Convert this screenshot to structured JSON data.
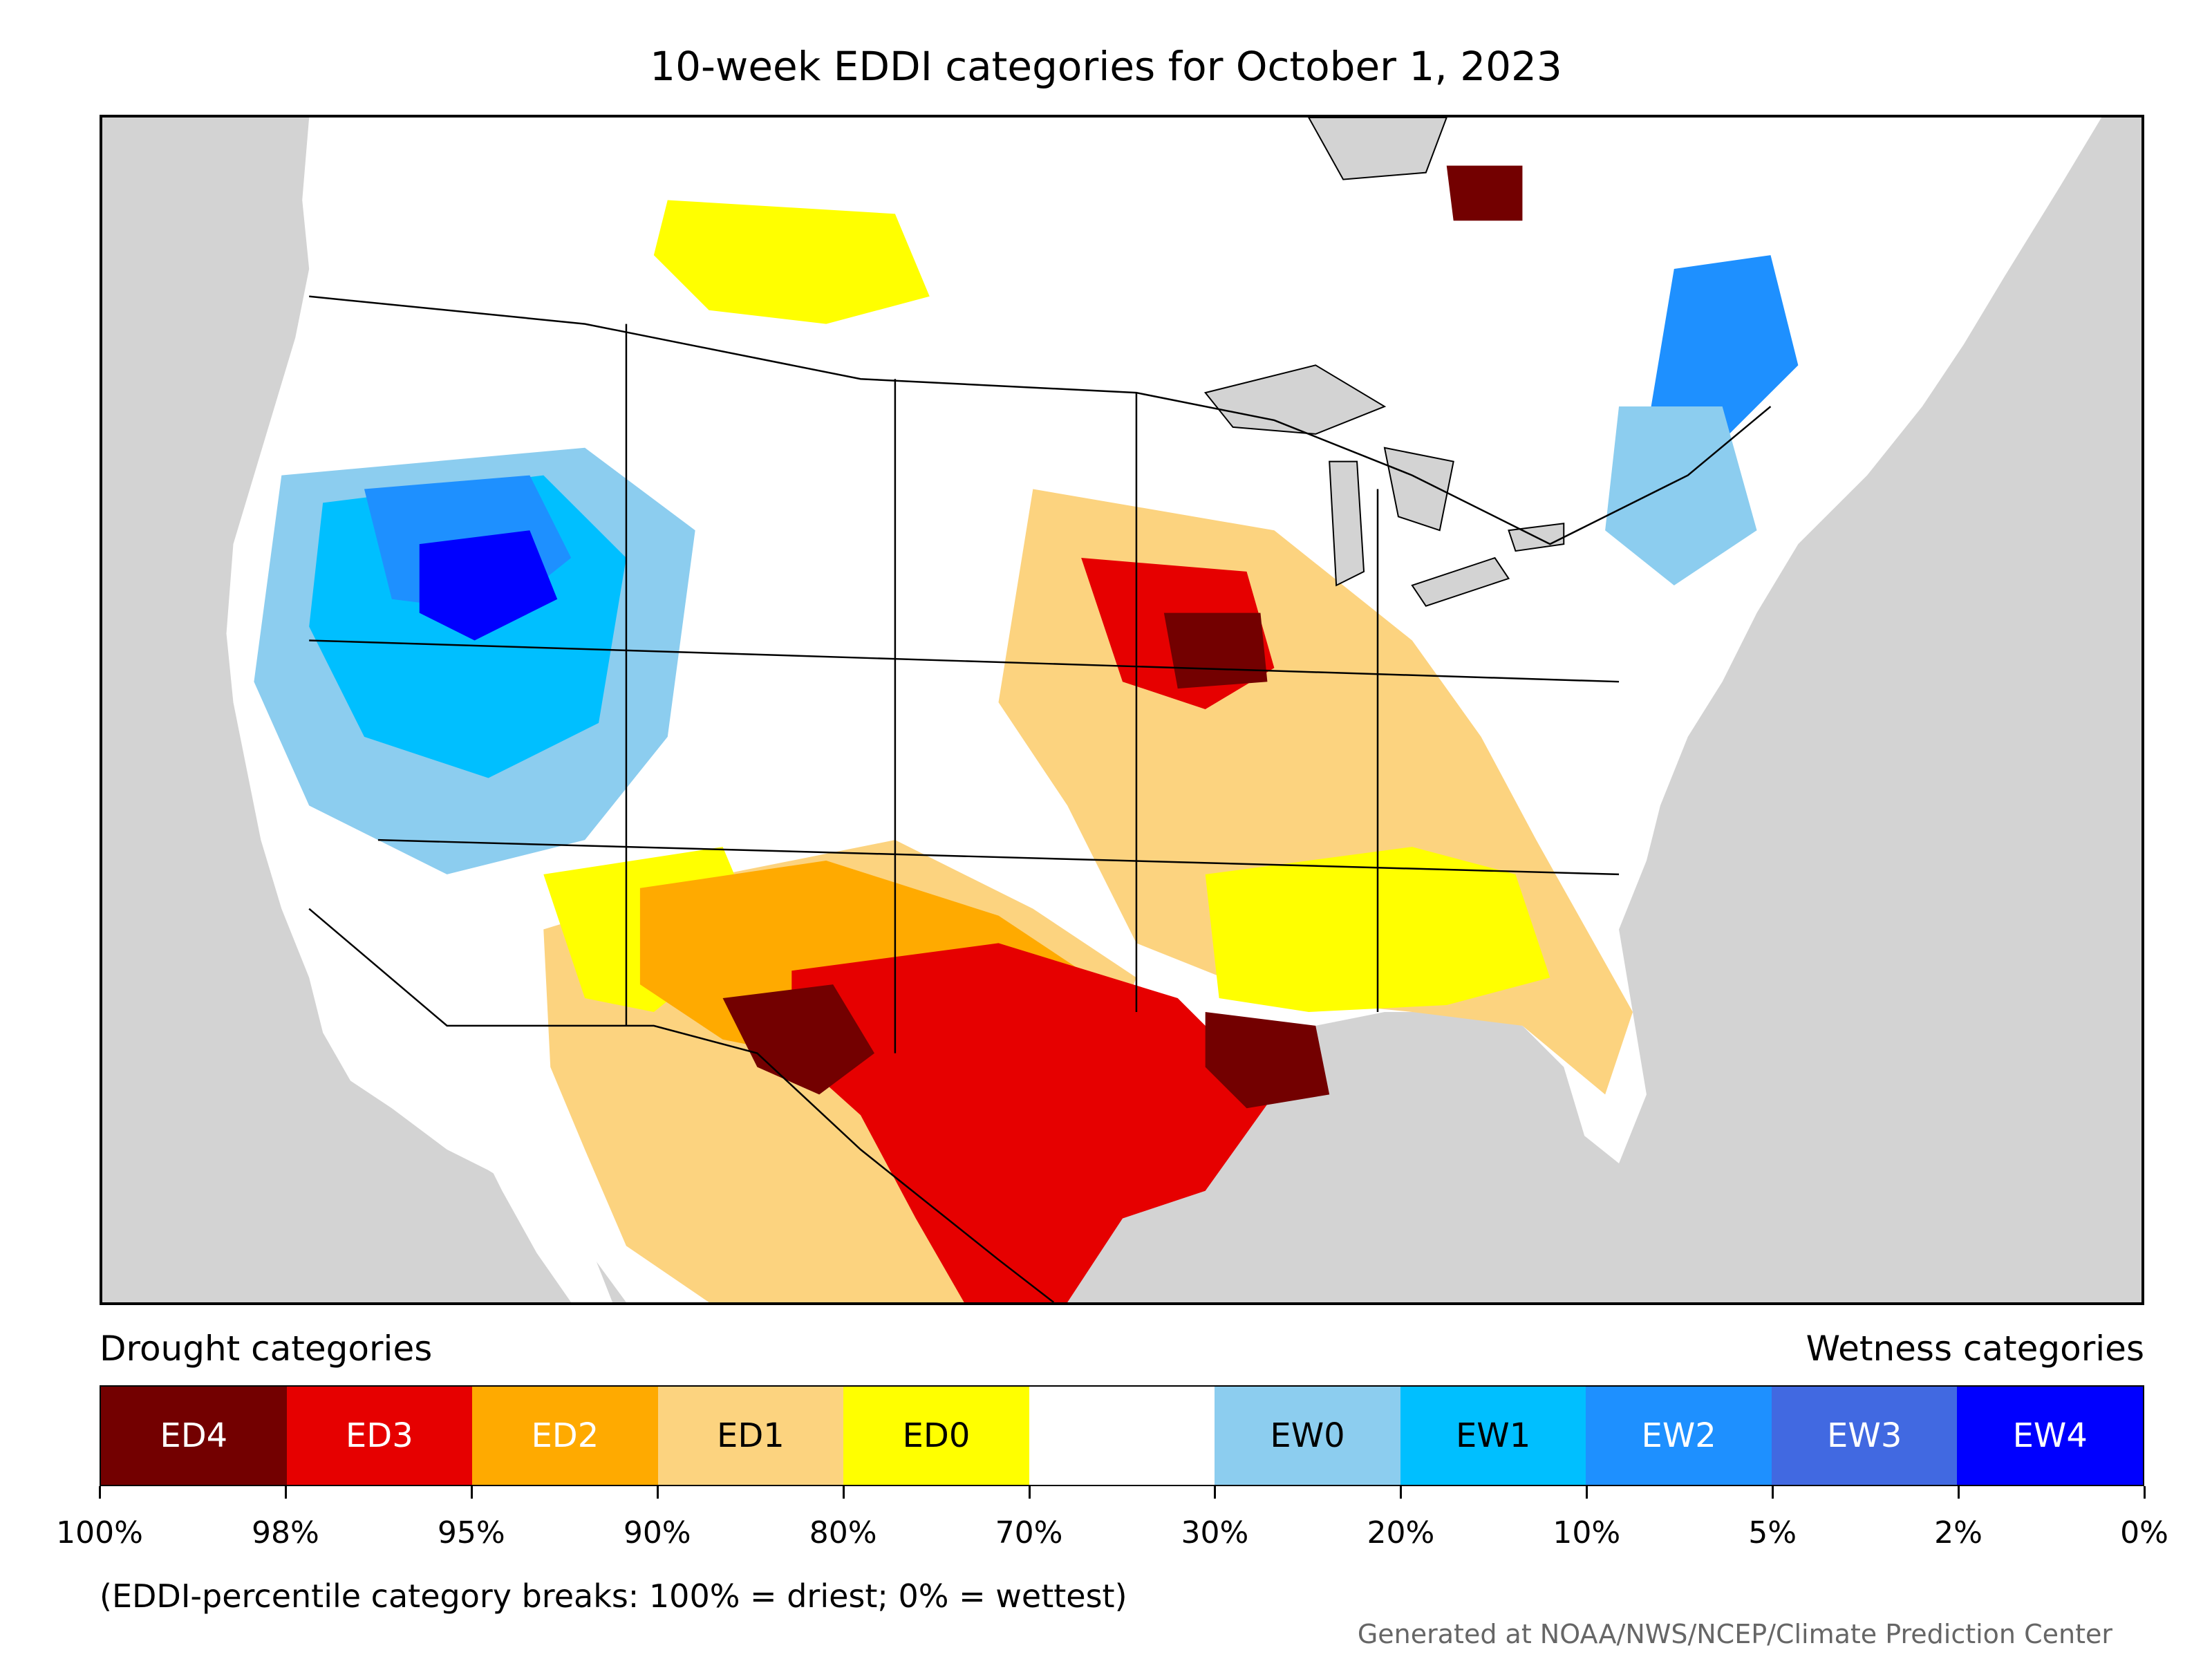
{
  "title": "10-week EDDI categories for October 1, 2023",
  "legend": {
    "drought_label": "Drought categories",
    "wetness_label": "Wetness categories",
    "categories": [
      {
        "label": "ED4",
        "color": "#730000",
        "text_color": "#ffffff"
      },
      {
        "label": "ED3",
        "color": "#e60000",
        "text_color": "#ffffff"
      },
      {
        "label": "ED2",
        "color": "#ffaa00",
        "text_color": "#ffffff"
      },
      {
        "label": "ED1",
        "color": "#fcd37f",
        "text_color": "#000000"
      },
      {
        "label": "ED0",
        "color": "#ffff00",
        "text_color": "#000000"
      },
      {
        "label": "",
        "color": "#ffffff",
        "text_color": "#000000"
      },
      {
        "label": "EW0",
        "color": "#8ccdef",
        "text_color": "#000000"
      },
      {
        "label": "EW1",
        "color": "#00bfff",
        "text_color": "#000000"
      },
      {
        "label": "EW2",
        "color": "#1e90ff",
        "text_color": "#ffffff"
      },
      {
        "label": "EW3",
        "color": "#4169e1",
        "text_color": "#ffffff"
      },
      {
        "label": "EW4",
        "color": "#0000ff",
        "text_color": "#ffffff"
      }
    ],
    "ticks": [
      "100%",
      "98%",
      "95%",
      "90%",
      "80%",
      "70%",
      "30%",
      "20%",
      "10%",
      "5%",
      "2%",
      "0%"
    ]
  },
  "note": "(EDDI-percentile category breaks: 100% = driest; 0% = wettest)",
  "credit": "Generated at NOAA/NWS/NCEP/Climate Prediction Center",
  "map": {
    "background_color": "#d3d3d3",
    "land_color": "#ffffff"
  }
}
